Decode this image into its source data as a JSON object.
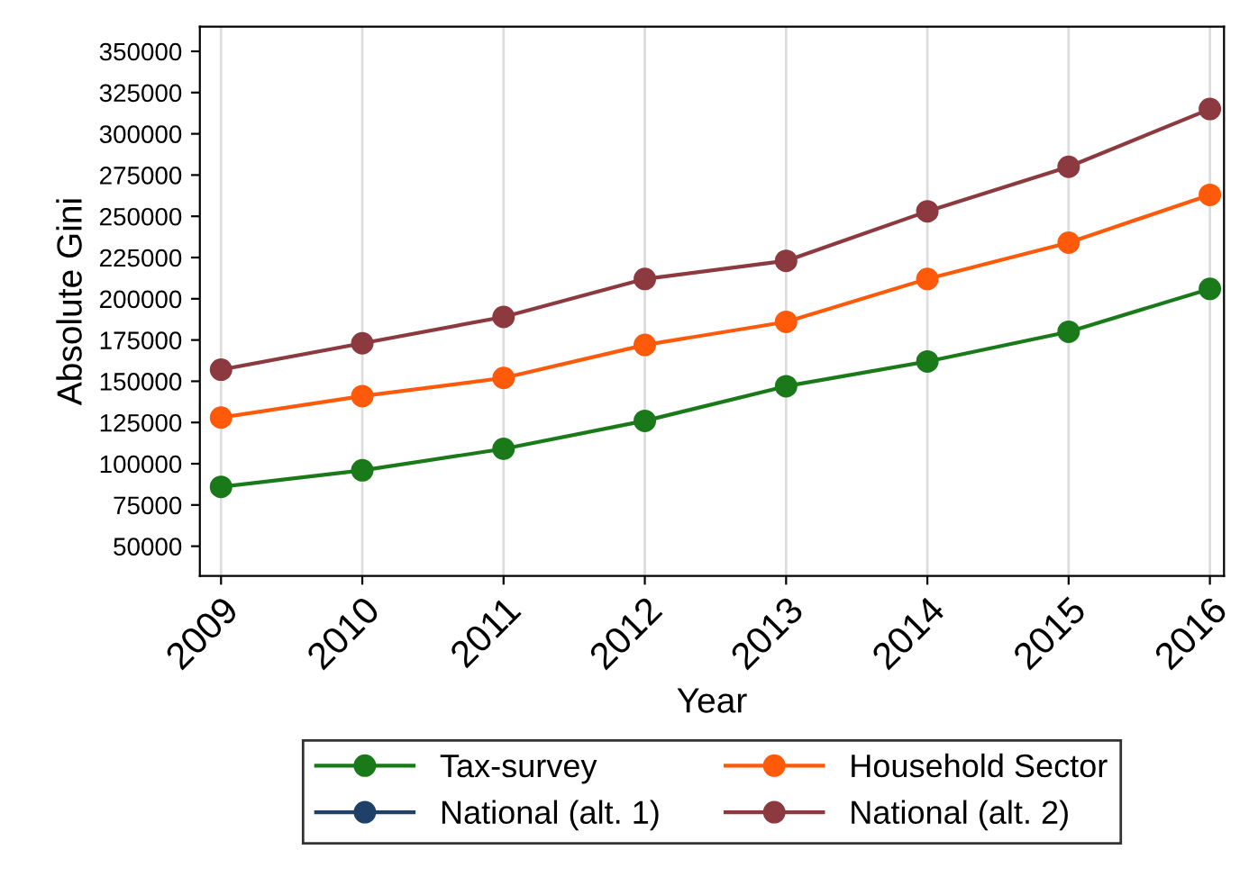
{
  "chart_data": {
    "type": "line",
    "xlabel": "Year",
    "ylabel": "Absolute Gini",
    "x": [
      2009,
      2010,
      2011,
      2012,
      2013,
      2014,
      2015,
      2016
    ],
    "series": [
      {
        "name": "Tax-survey",
        "color": "#1a7a1a",
        "values": [
          86000,
          96000,
          109000,
          126000,
          147000,
          162000,
          180000,
          206000
        ]
      },
      {
        "name": "Household Sector",
        "color": "#ff5a0a",
        "values": [
          128000,
          141000,
          152000,
          172000,
          186000,
          212000,
          234000,
          263000
        ]
      },
      {
        "name": "National (alt. 1)",
        "color": "#1f4068",
        "values": [
          null,
          null,
          null,
          null,
          null,
          null,
          null,
          null
        ]
      },
      {
        "name": "National (alt. 2)",
        "color": "#8c3a3f",
        "values": [
          157000,
          173000,
          189000,
          212000,
          223000,
          253000,
          280000,
          315000
        ]
      }
    ],
    "xlim": [
      2008.85,
      2016.1
    ],
    "xticks": [
      2009,
      2010,
      2011,
      2012,
      2013,
      2014,
      2015,
      2016
    ],
    "ylim": [
      32000,
      365000
    ],
    "yticks": [
      50000,
      75000,
      100000,
      125000,
      150000,
      175000,
      200000,
      225000,
      250000,
      275000,
      300000,
      325000,
      350000
    ],
    "grid": "x",
    "legend": "bottom",
    "marker": "circle",
    "line_style": "solid"
  }
}
